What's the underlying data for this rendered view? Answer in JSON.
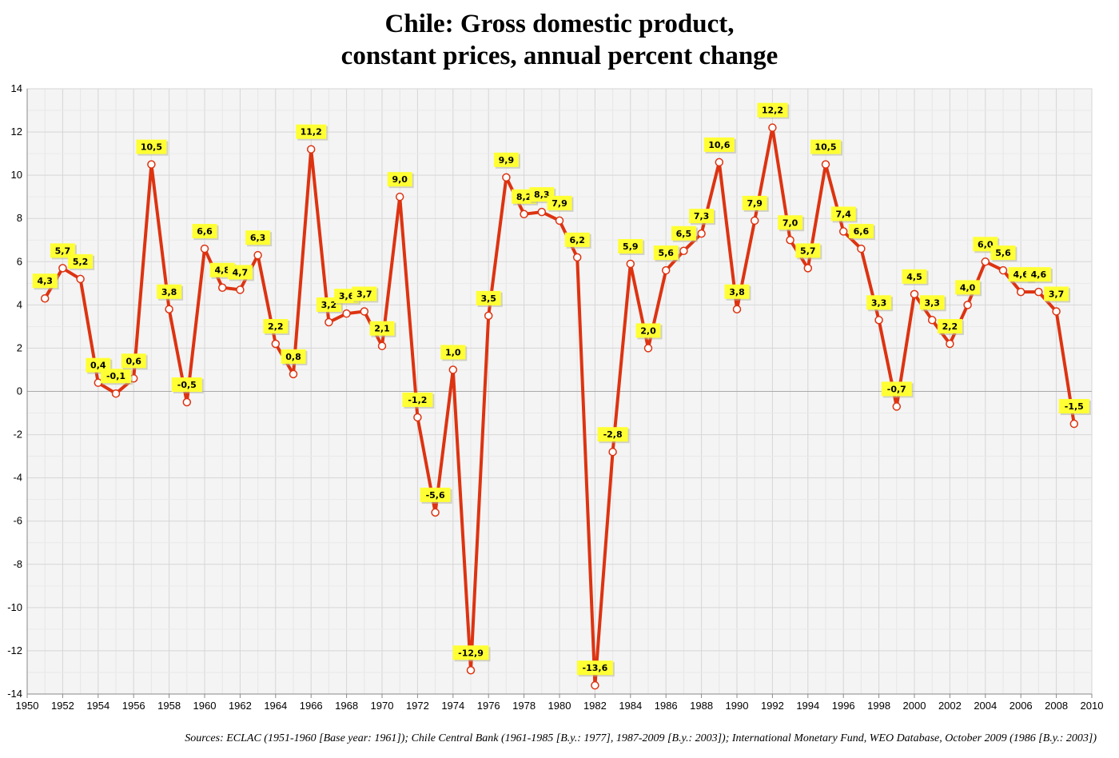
{
  "title_line1": "Chile: Gross domestic product,",
  "title_line2": "constant prices, annual percent change",
  "sources": "Sources: ECLAC (1951-1960 [Base year: 1961]); Chile Central Bank (1961-1985 [B.y.: 1977], 1987-2009 [B.y.: 2003]); International Monetary Fund, WEO Database, October 2009 (1986 [B.y.: 2003])",
  "colors": {
    "line": "#dd3311",
    "marker_fill": "#ffffff",
    "label_bg": "#ffff33",
    "plot_bg": "#f4f4f4",
    "grid": "#dcdcdc"
  },
  "chart_data": {
    "type": "line",
    "title": "Chile: Gross domestic product, constant prices, annual percent change",
    "xlabel": "",
    "ylabel": "",
    "xlim": [
      1950,
      2010
    ],
    "ylim": [
      -14,
      14
    ],
    "x_ticks": [
      1950,
      1952,
      1954,
      1956,
      1958,
      1960,
      1962,
      1964,
      1966,
      1968,
      1970,
      1972,
      1974,
      1976,
      1978,
      1980,
      1982,
      1984,
      1986,
      1988,
      1990,
      1992,
      1994,
      1996,
      1998,
      2000,
      2002,
      2004,
      2006,
      2008,
      2010
    ],
    "y_ticks": [
      -14,
      -12,
      -10,
      -8,
      -6,
      -4,
      -2,
      0,
      2,
      4,
      6,
      8,
      10,
      12,
      14
    ],
    "grid": true,
    "legend": "none",
    "x": [
      1951,
      1952,
      1953,
      1954,
      1955,
      1956,
      1957,
      1958,
      1959,
      1960,
      1961,
      1962,
      1963,
      1964,
      1965,
      1966,
      1967,
      1968,
      1969,
      1970,
      1971,
      1972,
      1973,
      1974,
      1975,
      1976,
      1977,
      1978,
      1979,
      1980,
      1981,
      1982,
      1983,
      1984,
      1985,
      1986,
      1987,
      1988,
      1989,
      1990,
      1991,
      1992,
      1993,
      1994,
      1995,
      1996,
      1997,
      1998,
      1999,
      2000,
      2001,
      2002,
      2003,
      2004,
      2005,
      2006,
      2007,
      2008,
      2009
    ],
    "y": [
      4.3,
      5.7,
      5.2,
      0.4,
      -0.1,
      0.6,
      10.5,
      3.8,
      -0.5,
      6.6,
      4.8,
      4.7,
      6.3,
      2.2,
      0.8,
      11.2,
      3.2,
      3.6,
      3.7,
      2.1,
      9.0,
      -1.2,
      -5.6,
      1.0,
      -12.9,
      3.5,
      9.9,
      8.2,
      8.3,
      7.9,
      6.2,
      -13.6,
      -2.8,
      5.9,
      2.0,
      5.6,
      6.5,
      7.3,
      10.6,
      3.8,
      7.9,
      12.2,
      7.0,
      5.7,
      10.5,
      7.4,
      6.6,
      3.3,
      -0.7,
      4.5,
      3.3,
      2.2,
      4.0,
      6.0,
      5.6,
      4.6,
      4.6,
      3.7,
      -1.5
    ],
    "data_labels": [
      "4,3",
      "5,7",
      "5,2",
      "0,4",
      "-0,1",
      "0,6",
      "10,5",
      "3,8",
      "-0,5",
      "6,6",
      "4,8",
      "4,7",
      "6,3",
      "2,2",
      "0,8",
      "11,2",
      "3,2",
      "3,6",
      "3,7",
      "2,1",
      "9,0",
      "-1,2",
      "-5,6",
      "1,0",
      "-12,9",
      "3,5",
      "9,9",
      "8,2",
      "8,3",
      "7,9",
      "6,2",
      "-13,6",
      "-2,8",
      "5,9",
      "2,0",
      "5,6",
      "6,5",
      "7,3",
      "10,6",
      "3,8",
      "7,9",
      "12,2",
      "7,0",
      "5,7",
      "10,5",
      "7,4",
      "6,6",
      "3,3",
      "-0,7",
      "4,5",
      "3,3",
      "2,2",
      "4,0",
      "6,0",
      "5,6",
      "4,6",
      "4,6",
      "3,7",
      "-1,5"
    ]
  }
}
